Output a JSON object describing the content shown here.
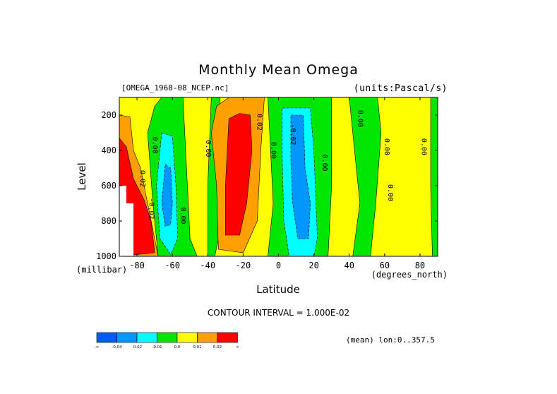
{
  "figure": {
    "title": "Monthly Mean Omega",
    "file_label": "[OMEGA_1968-08_NCEP.nc]",
    "units_label": "(units:Pascal/s)",
    "contour_interval": "CONTOUR INTERVAL = 1.000E-02",
    "mean_note": "(mean) lon:0..357.5",
    "colors": {
      "c_m05": "#005aff",
      "c_m04": "#0096ff",
      "c_m02": "#00ffff",
      "c_m01": "#00e600",
      "c_0": "#ffff00",
      "c_p01": "#ffa000",
      "c_p02": "#ff0000"
    }
  },
  "chart_data": {
    "type": "heatmap",
    "title": "Monthly Mean Omega",
    "xlabel": "Latitude",
    "xunits": "(degrees_north)",
    "ylabel": "Level",
    "yunits": "(millibar)",
    "xlim": [
      -90,
      90
    ],
    "ylim": [
      1000,
      100
    ],
    "xticks": [
      -80,
      -60,
      -40,
      -20,
      0,
      20,
      40,
      60,
      80
    ],
    "yticks": [
      200,
      400,
      600,
      800,
      1000
    ],
    "xtick_labels": [
      "-80",
      "-60",
      "-40",
      "-20",
      "0",
      "20",
      "40",
      "60",
      "80"
    ],
    "ytick_labels": [
      "200",
      "400",
      "600",
      "800",
      "1000"
    ],
    "colorbar": {
      "boundaries": [
        "-∞",
        "-0.04",
        "-0.02",
        "-0.01",
        "0.0",
        "0.01",
        "0.02",
        "∞"
      ],
      "bins": [
        {
          "range": "< -0.04",
          "color": "#005aff"
        },
        {
          "range": "-0.04 to -0.02",
          "color": "#0096ff"
        },
        {
          "range": "-0.02 to -0.01",
          "color": "#00ffff"
        },
        {
          "range": "-0.01 to 0.0",
          "color": "#00e600"
        },
        {
          "range": "0.0 to 0.01",
          "color": "#ffff00"
        },
        {
          "range": "0.01 to 0.02",
          "color": "#ffa000"
        },
        {
          "range": "> 0.02",
          "color": "#ff0000"
        }
      ]
    },
    "contour_labels": [
      {
        "text": "0.00",
        "lat": -71,
        "lev": 370
      },
      {
        "text": "0.02",
        "lat": -78,
        "lev": 560
      },
      {
        "text": "-0.02",
        "lat": -73,
        "lev": 730
      },
      {
        "text": "0.00",
        "lat": -55,
        "lev": 770
      },
      {
        "text": "0.00",
        "lat": -41,
        "lev": 390
      },
      {
        "text": "0.02",
        "lat": -12,
        "lev": 240
      },
      {
        "text": "0.00",
        "lat": -4,
        "lev": 400
      },
      {
        "text": "-0.02",
        "lat": 7,
        "lev": 310
      },
      {
        "text": "0.00",
        "lat": 25,
        "lev": 470
      },
      {
        "text": "0.00",
        "lat": 45,
        "lev": 220
      },
      {
        "text": "0.00",
        "lat": 60,
        "lev": 380
      },
      {
        "text": "0.00",
        "lat": 62,
        "lev": 640
      },
      {
        "text": "0.00",
        "lat": 81,
        "lev": 380
      }
    ],
    "regions": {
      "base_color": "#ffff00",
      "note": "Zonal-mean omega bands (lat, level) drawn as filled contours",
      "bands": [
        {
          "color": "#00e600",
          "pts": [
            [
              -66,
              100
            ],
            [
              -54,
              100
            ],
            [
              -52,
              500
            ],
            [
              -50,
              900
            ],
            [
              -46,
              1000
            ],
            [
              -68,
              1000
            ],
            [
              -71,
              700
            ],
            [
              -74,
              300
            ],
            [
              -70,
              150
            ]
          ]
        },
        {
          "color": "#00ffff",
          "pts": [
            [
              -66,
              300
            ],
            [
              -60,
              320
            ],
            [
              -58,
              600
            ],
            [
              -57,
              900
            ],
            [
              -61,
              990
            ],
            [
              -67,
              900
            ],
            [
              -69,
              600
            ]
          ]
        },
        {
          "color": "#0096ff",
          "pts": [
            [
              -64,
              480
            ],
            [
              -61,
              500
            ],
            [
              -60,
              700
            ],
            [
              -61,
              820
            ],
            [
              -64,
              830
            ],
            [
              -66,
              700
            ]
          ]
        },
        {
          "color": "#00e600",
          "pts": [
            [
              -38,
              100
            ],
            [
              -33,
              100
            ],
            [
              -33,
              500
            ],
            [
              -34,
              900
            ],
            [
              -36,
              1000
            ],
            [
              -40,
              1000
            ],
            [
              -40,
              600
            ]
          ]
        },
        {
          "color": "#ffa000",
          "pts": [
            [
              -35,
              150
            ],
            [
              -28,
              100
            ],
            [
              -8,
              100
            ],
            [
              -10,
              400
            ],
            [
              -12,
              800
            ],
            [
              -20,
              980
            ],
            [
              -34,
              960
            ],
            [
              -35,
              600
            ],
            [
              -38,
              300
            ]
          ]
        },
        {
          "color": "#ffa000",
          "pts": [
            [
              -90,
              200
            ],
            [
              -84,
              210
            ],
            [
              -82,
              400
            ],
            [
              -78,
              500
            ],
            [
              -74,
              700
            ],
            [
              -70,
              900
            ],
            [
              -68,
              1000
            ],
            [
              -90,
              1000
            ]
          ]
        },
        {
          "color": "#ff0000",
          "pts": [
            [
              -90,
              330
            ],
            [
              -86,
              380
            ],
            [
              -82,
              560
            ],
            [
              -76,
              680
            ],
            [
              -72,
              800
            ],
            [
              -70,
              980
            ],
            [
              -90,
              1000
            ]
          ]
        },
        {
          "color": "#ff0000",
          "pts": [
            [
              -28,
              220
            ],
            [
              -22,
              190
            ],
            [
              -16,
              200
            ],
            [
              -15,
              400
            ],
            [
              -18,
              700
            ],
            [
              -22,
              880
            ],
            [
              -30,
              880
            ],
            [
              -30,
              600
            ]
          ]
        },
        {
          "color": "#00e600",
          "pts": [
            [
              -6,
              100
            ],
            [
              30,
              100
            ],
            [
              30,
              600
            ],
            [
              28,
              1000
            ],
            [
              -6,
              1000
            ],
            [
              -3,
              700
            ],
            [
              -5,
              300
            ]
          ]
        },
        {
          "color": "#00ffff",
          "pts": [
            [
              2,
              160
            ],
            [
              18,
              160
            ],
            [
              20,
              400
            ],
            [
              22,
              900
            ],
            [
              20,
              1000
            ],
            [
              6,
              1000
            ],
            [
              3,
              800
            ],
            [
              2,
              400
            ]
          ]
        },
        {
          "color": "#0096ff",
          "pts": [
            [
              7,
              200
            ],
            [
              14,
              200
            ],
            [
              15,
              500
            ],
            [
              18,
              700
            ],
            [
              17,
              900
            ],
            [
              11,
              900
            ],
            [
              8,
              700
            ],
            [
              7,
              450
            ]
          ]
        },
        {
          "color": "#00e600",
          "pts": [
            [
              40,
              100
            ],
            [
              56,
              100
            ],
            [
              58,
              300
            ],
            [
              55,
              700
            ],
            [
              52,
              1000
            ],
            [
              42,
              1000
            ],
            [
              46,
              700
            ],
            [
              42,
              300
            ]
          ]
        },
        {
          "color": "#00e600",
          "pts": [
            [
              86,
              100
            ],
            [
              90,
              100
            ],
            [
              90,
              1000
            ],
            [
              87,
              1000
            ],
            [
              86,
              600
            ]
          ]
        }
      ]
    }
  }
}
